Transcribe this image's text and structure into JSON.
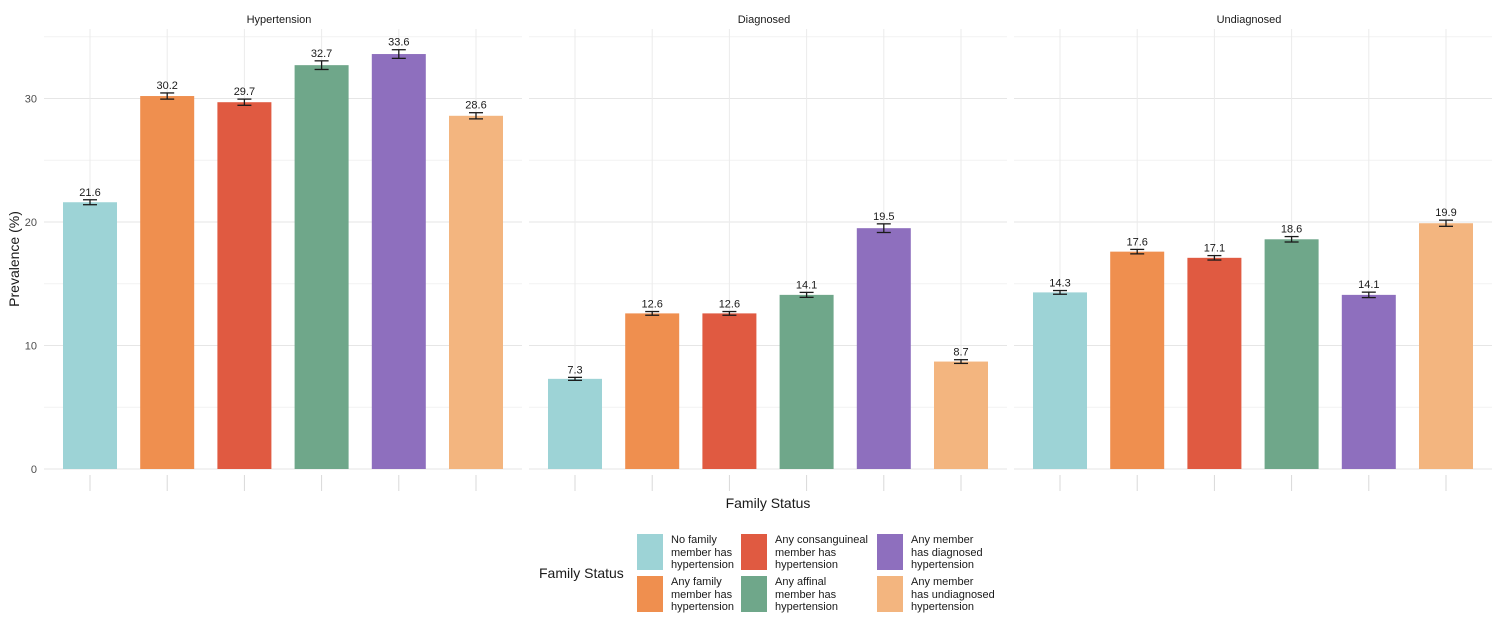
{
  "chart_data": {
    "type": "bar",
    "panels": [
      "Hypertension",
      "Diagnosed",
      "Undiagnosed"
    ],
    "categories": [
      "No family member has hypertension",
      "Any family member has hypertension",
      "Any consanguineal member has hypertension",
      "Any affinal member has hypertension",
      "Any member has diagnosed hypertension",
      "Any member has undiagnosed hypertension"
    ],
    "series": [
      {
        "panel": "Hypertension",
        "values": [
          21.6,
          30.2,
          29.7,
          32.7,
          33.6,
          28.6
        ],
        "errors": [
          0.2,
          0.25,
          0.25,
          0.35,
          0.35,
          0.25
        ]
      },
      {
        "panel": "Diagnosed",
        "values": [
          7.3,
          12.6,
          12.6,
          14.1,
          19.5,
          8.7
        ],
        "errors": [
          0.12,
          0.15,
          0.15,
          0.2,
          0.35,
          0.15
        ]
      },
      {
        "panel": "Undiagnosed",
        "values": [
          14.3,
          17.6,
          17.1,
          18.6,
          14.1,
          19.9
        ],
        "errors": [
          0.15,
          0.18,
          0.18,
          0.22,
          0.22,
          0.25
        ]
      }
    ],
    "data_labels": [
      [
        "21.6",
        "30.2",
        "29.7",
        "32.7",
        "33.6",
        "28.6"
      ],
      [
        "7.3",
        "12.6",
        "12.6",
        "14.1",
        "19.5",
        "8.7"
      ],
      [
        "14.3",
        "17.6",
        "17.1",
        "18.6",
        "14.1",
        "19.9"
      ]
    ],
    "colors": [
      "#9dd3d6",
      "#ef8f4f",
      "#e05a41",
      "#6fa78a",
      "#8e6fbe",
      "#f3b57f"
    ],
    "xlabel": "Family Status",
    "ylabel": "Prevalence (%)",
    "ylim": [
      0,
      35
    ],
    "yticks": [
      0,
      10,
      20,
      30
    ],
    "ytick_labels": [
      "0",
      "10",
      "20",
      "30"
    ],
    "grid": true,
    "legend": {
      "title": "Family Status",
      "position": "bottom",
      "entries": [
        "No family\nmember has\nhypertension",
        "Any family\nmember has\nhypertension",
        "Any consanguineal\nmember has\nhypertension",
        "Any affinal\nmember has\nhypertension",
        "Any member\nhas diagnosed\nhypertension",
        "Any member\nhas undiagnosed\nhypertension"
      ]
    }
  }
}
